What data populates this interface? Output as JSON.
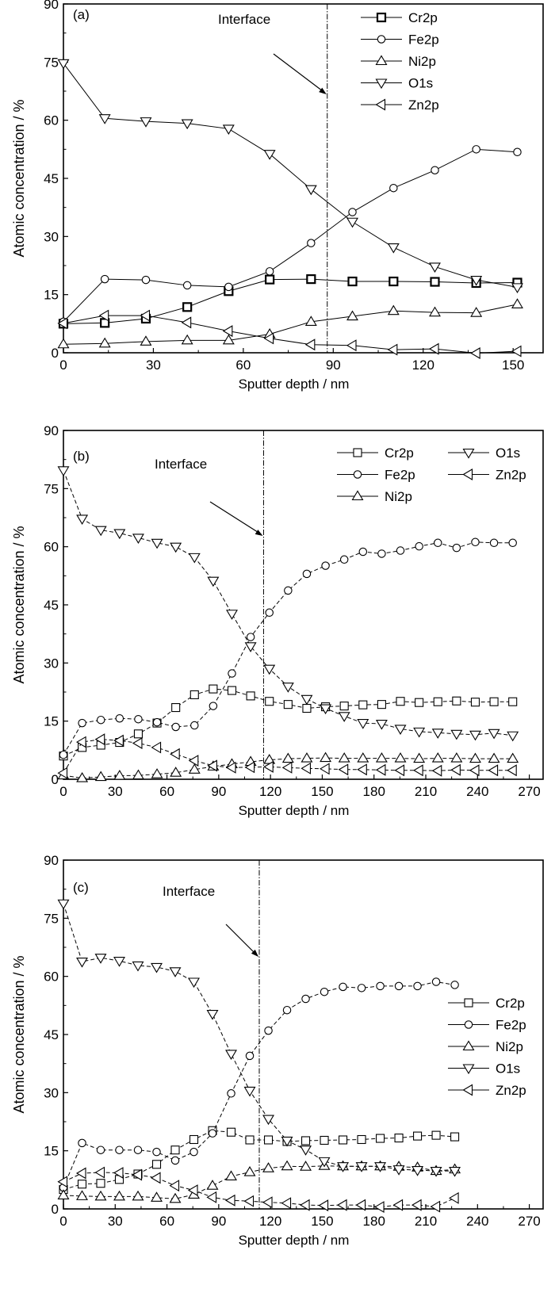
{
  "chart_data": [
    {
      "type": "line",
      "panel_label": "(a)",
      "xlabel": "Sputter depth / nm",
      "ylabel": "Atomic concentration / %",
      "xlim": [
        0,
        160
      ],
      "ylim": [
        0,
        90
      ],
      "xticks": [
        0,
        30,
        60,
        90,
        120,
        150
      ],
      "yticks": [
        0,
        15,
        30,
        45,
        60,
        75,
        90
      ],
      "grid": false,
      "legend_placement": "top-right",
      "legend_columns": 1,
      "line_style": "solid",
      "annotation": {
        "text": "Interface",
        "x": 88
      },
      "x": [
        0,
        13.8,
        27.5,
        41.3,
        55.1,
        68.8,
        82.6,
        96.4,
        110.1,
        123.9,
        137.7,
        151.4
      ],
      "series": [
        {
          "name": "Cr2p",
          "marker": "square",
          "values": [
            7.5,
            7.7,
            8.8,
            11.8,
            15.9,
            18.9,
            19.0,
            18.4,
            18.4,
            18.3,
            18.0,
            18.1
          ]
        },
        {
          "name": "Fe2p",
          "marker": "circle",
          "values": [
            8.0,
            19.0,
            18.8,
            17.4,
            17.0,
            21.0,
            28.3,
            36.3,
            42.5,
            47.1,
            52.5,
            51.8
          ]
        },
        {
          "name": "Ni2p",
          "marker": "triangle-up",
          "values": [
            2.2,
            2.4,
            2.9,
            3.2,
            3.2,
            4.8,
            8.0,
            9.4,
            10.8,
            10.4,
            10.3,
            12.5
          ]
        },
        {
          "name": "O1s",
          "marker": "triangle-down",
          "values": [
            74.7,
            60.5,
            59.7,
            59.2,
            57.8,
            51.3,
            42.2,
            33.8,
            27.2,
            22.2,
            18.8,
            16.9
          ]
        },
        {
          "name": "Zn2p",
          "marker": "triangle-left",
          "values": [
            7.6,
            9.6,
            9.6,
            7.8,
            5.6,
            3.7,
            2.1,
            1.9,
            0.8,
            1.0,
            -0.1,
            0.4
          ]
        }
      ]
    },
    {
      "type": "line",
      "panel_label": "(b)",
      "xlabel": "Sputter depth / nm",
      "ylabel": "Atomic concentration / %",
      "xlim": [
        0,
        278
      ],
      "ylim": [
        0,
        90
      ],
      "xticks": [
        0,
        30,
        60,
        90,
        120,
        150,
        180,
        210,
        240,
        270
      ],
      "yticks": [
        0,
        15,
        30,
        45,
        60,
        75,
        90
      ],
      "grid": false,
      "legend_placement": "top-right",
      "legend_columns": 2,
      "line_style": "dashed",
      "annotation": {
        "text": "Interface",
        "x": 116
      },
      "x": [
        0,
        10.85,
        21.7,
        32.55,
        43.4,
        54.25,
        65.1,
        75.95,
        86.8,
        97.65,
        108.5,
        119.35,
        130.2,
        141.05,
        151.9,
        162.75,
        173.6,
        184.45,
        195.3,
        206.15,
        217,
        227.85,
        238.7,
        249.55,
        260.4
      ],
      "series": [
        {
          "name": "Cr2p",
          "marker": "square",
          "values": [
            6.0,
            8.2,
            8.8,
            9.5,
            11.7,
            14.5,
            18.5,
            21.8,
            23.3,
            22.9,
            21.5,
            20.1,
            19.3,
            18.3,
            18.7,
            18.9,
            19.2,
            19.3,
            20.1,
            19.8,
            20.0,
            20.2,
            19.9,
            20.0,
            20.0
          ]
        },
        {
          "name": "Fe2p",
          "marker": "circle",
          "values": [
            6.3,
            14.5,
            15.3,
            15.7,
            15.5,
            14.7,
            13.5,
            13.9,
            18.9,
            27.3,
            36.7,
            43.0,
            48.7,
            53.0,
            55.1,
            56.7,
            58.7,
            58.2,
            59.0,
            60.1,
            61.0,
            59.7,
            61.2,
            61.0,
            61.0
          ]
        },
        {
          "name": "Ni2p",
          "marker": "triangle-up",
          "values": [
            1.0,
            0.3,
            0.6,
            0.9,
            1.0,
            1.3,
            1.7,
            2.5,
            3.3,
            3.9,
            4.5,
            5.0,
            5.3,
            5.4,
            5.5,
            5.4,
            5.4,
            5.4,
            5.4,
            5.3,
            5.4,
            5.4,
            5.3,
            5.3,
            5.3
          ]
        },
        {
          "name": "O1s",
          "marker": "triangle-down",
          "values": [
            79.7,
            67.2,
            64.3,
            63.5,
            62.3,
            61.0,
            60.0,
            57.3,
            51.2,
            42.7,
            34.3,
            28.5,
            23.9,
            20.7,
            18.3,
            16.3,
            14.5,
            14.3,
            13.0,
            12.3,
            12.0,
            11.7,
            11.5,
            11.9,
            11.3
          ]
        },
        {
          "name": "Zn2p",
          "marker": "triangle-left",
          "values": [
            1.6,
            9.6,
            10.3,
            10.0,
            9.3,
            8.2,
            6.5,
            4.8,
            3.5,
            3.0,
            3.1,
            3.2,
            3.0,
            2.8,
            2.7,
            2.5,
            2.5,
            2.4,
            2.3,
            2.3,
            2.2,
            2.4,
            2.3,
            2.3,
            2.3
          ]
        }
      ]
    },
    {
      "type": "line",
      "panel_label": "(c)",
      "xlabel": "Sputter depth / nm",
      "ylabel": "Atomic concentration / %",
      "xlim": [
        0,
        278
      ],
      "ylim": [
        0,
        90
      ],
      "xticks": [
        0,
        30,
        60,
        90,
        120,
        150,
        180,
        210,
        240,
        270
      ],
      "yticks": [
        0,
        15,
        30,
        45,
        60,
        75,
        90
      ],
      "grid": false,
      "legend_placement": "right",
      "legend_columns": 1,
      "line_style": "dashed",
      "annotation": {
        "text": "Interface",
        "x": 113.5
      },
      "x": [
        0,
        10.8,
        21.6,
        32.4,
        43.2,
        54,
        64.8,
        75.6,
        86.4,
        97.2,
        108,
        118.8,
        129.6,
        140.4,
        151.2,
        162,
        172.8,
        183.6,
        194.4,
        205.2,
        216,
        226.8
      ],
      "series": [
        {
          "name": "Cr2p",
          "marker": "square",
          "values": [
            5.0,
            6.4,
            6.6,
            7.6,
            9.0,
            11.5,
            15.2,
            17.9,
            20.2,
            19.8,
            17.8,
            17.8,
            17.4,
            17.6,
            17.7,
            17.8,
            17.9,
            18.2,
            18.3,
            18.8,
            19.0,
            18.6
          ]
        },
        {
          "name": "Fe2p",
          "marker": "circle",
          "values": [
            5.5,
            17.0,
            15.2,
            15.2,
            15.2,
            14.7,
            12.5,
            14.7,
            19.5,
            29.8,
            39.5,
            46.0,
            51.3,
            54.2,
            56.0,
            57.3,
            57.0,
            57.5,
            57.5,
            57.5,
            58.6,
            57.8
          ]
        },
        {
          "name": "Ni2p",
          "marker": "triangle-up",
          "values": [
            3.5,
            3.3,
            3.2,
            3.2,
            3.2,
            2.9,
            2.6,
            3.7,
            6.0,
            8.4,
            9.5,
            10.5,
            11.0,
            10.9,
            11.1,
            11.0,
            11.0,
            11.0,
            10.9,
            10.7,
            9.8,
            10.2
          ]
        },
        {
          "name": "O1s",
          "marker": "triangle-down",
          "values": [
            78.8,
            63.8,
            64.8,
            64.0,
            62.8,
            62.4,
            61.3,
            58.6,
            50.3,
            40.0,
            30.5,
            23.2,
            17.6,
            15.3,
            12.3,
            11.0,
            11.0,
            11.0,
            10.2,
            10.0,
            9.8,
            9.8
          ]
        },
        {
          "name": "Zn2p",
          "marker": "triangle-left",
          "values": [
            7.0,
            9.2,
            9.4,
            9.3,
            8.8,
            8.0,
            6.0,
            4.8,
            3.0,
            2.2,
            2.0,
            1.7,
            1.5,
            1.0,
            0.9,
            1.0,
            1.0,
            0.5,
            1.0,
            1.0,
            0.6,
            2.8
          ]
        }
      ]
    }
  ]
}
